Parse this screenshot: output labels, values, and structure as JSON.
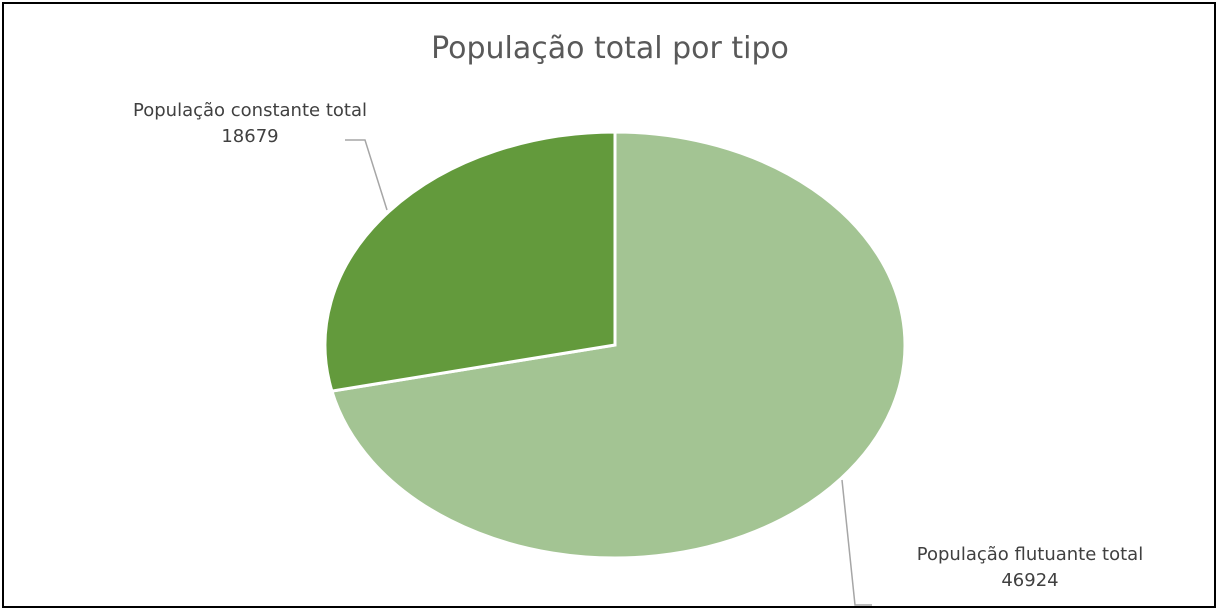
{
  "chart_data": {
    "type": "pie",
    "title": "População total por tipo",
    "categories": [
      "População flutuante total",
      "População constante total"
    ],
    "values": [
      46924,
      18679
    ],
    "colors": [
      "#a3c493",
      "#639a3c"
    ]
  }
}
